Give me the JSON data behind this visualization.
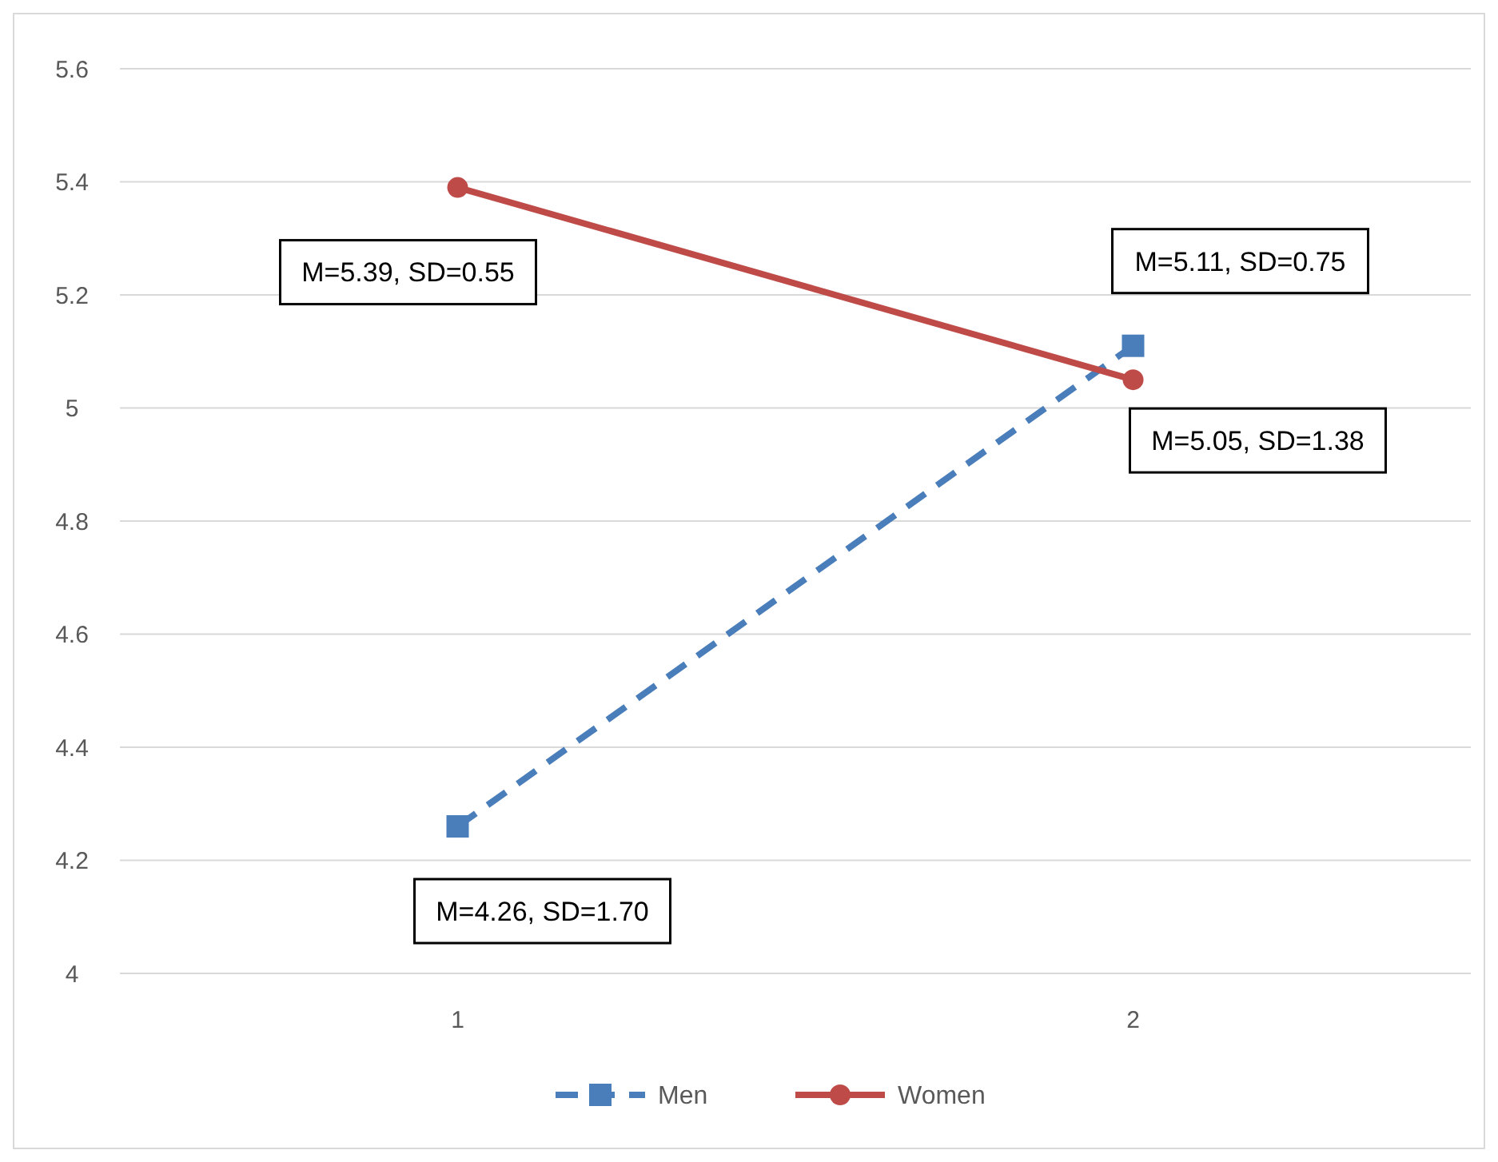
{
  "chart_data": {
    "type": "line",
    "categories": [
      "1",
      "2"
    ],
    "series": [
      {
        "name": "Men",
        "color": "#4a7ebb",
        "values": [
          4.26,
          5.11
        ],
        "marker": "square",
        "line_style": "dashed"
      },
      {
        "name": "Women",
        "color": "#be4b48",
        "values": [
          5.39,
          5.05
        ],
        "marker": "circle",
        "line_style": "solid"
      }
    ],
    "ylim": [
      4,
      5.6
    ],
    "yticks": [
      4,
      4.2,
      4.4,
      4.6,
      4.8,
      5,
      5.2,
      5.4,
      5.6
    ],
    "grid": "y",
    "legend": "bottom",
    "annotations": [
      {
        "text": "M=4.26, SD=1.70",
        "x": "1",
        "y": 4.26
      },
      {
        "text": "M=5.39, SD=0.55",
        "x": "1",
        "y": 5.39
      },
      {
        "text": "M=5.11, SD=0.75",
        "x": "2",
        "y": 5.11
      },
      {
        "text": "M=5.05, SD=1.38",
        "x": "2",
        "y": 5.05
      }
    ]
  }
}
